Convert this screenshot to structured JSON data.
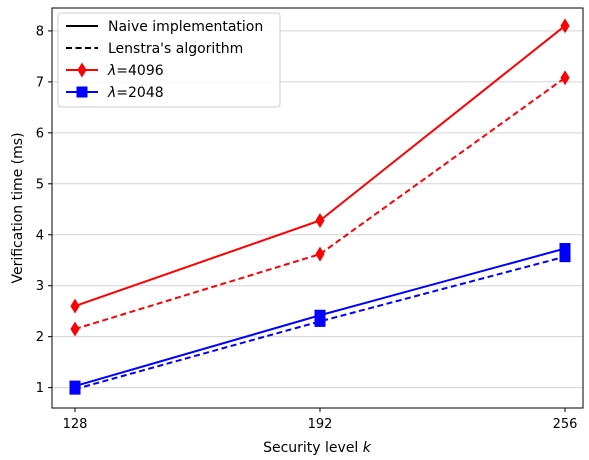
{
  "chart_data": {
    "type": "line",
    "xlabel_prefix": "Security level ",
    "xlabel_var": "k",
    "ylabel": "Verification time (ms)",
    "x": [
      128,
      192,
      256
    ],
    "x_ticks": [
      "128",
      "192",
      "256"
    ],
    "y_ticks": [
      "1",
      "2",
      "3",
      "4",
      "5",
      "6",
      "7",
      "8"
    ],
    "ylim": [
      0.6,
      8.45
    ],
    "grid": "horizontal",
    "legend_position": "top-left",
    "legend": [
      {
        "symbol": "λ",
        "label": "Naive implementation",
        "style": "solid",
        "color": "#000000"
      },
      {
        "symbol": "λ",
        "label": "Lenstra's algorithm",
        "style": "dashed",
        "color": "#000000"
      },
      {
        "symbol": "λ",
        "label": "=4096",
        "style": "solid",
        "color": "#ff0000",
        "marker": "diamond"
      },
      {
        "symbol": "λ",
        "label": "=2048",
        "style": "solid",
        "color": "#0000ff",
        "marker": "square"
      }
    ],
    "series": [
      {
        "group": "λ=4096",
        "method": "Naive implementation",
        "color": "#ff0000",
        "marker": "diamond",
        "dash": false,
        "values": [
          2.6,
          4.28,
          8.1
        ]
      },
      {
        "group": "λ=4096",
        "method": "Lenstra's algorithm",
        "color": "#ff0000",
        "marker": "diamond",
        "dash": true,
        "values": [
          2.15,
          3.62,
          7.08
        ]
      },
      {
        "group": "λ=2048",
        "method": "Naive implementation",
        "color": "#0000ff",
        "marker": "square",
        "dash": false,
        "values": [
          1.03,
          2.42,
          3.73
        ]
      },
      {
        "group": "λ=2048",
        "method": "Lenstra's algorithm",
        "color": "#0000ff",
        "marker": "square",
        "dash": true,
        "values": [
          0.97,
          2.3,
          3.57
        ]
      }
    ]
  }
}
